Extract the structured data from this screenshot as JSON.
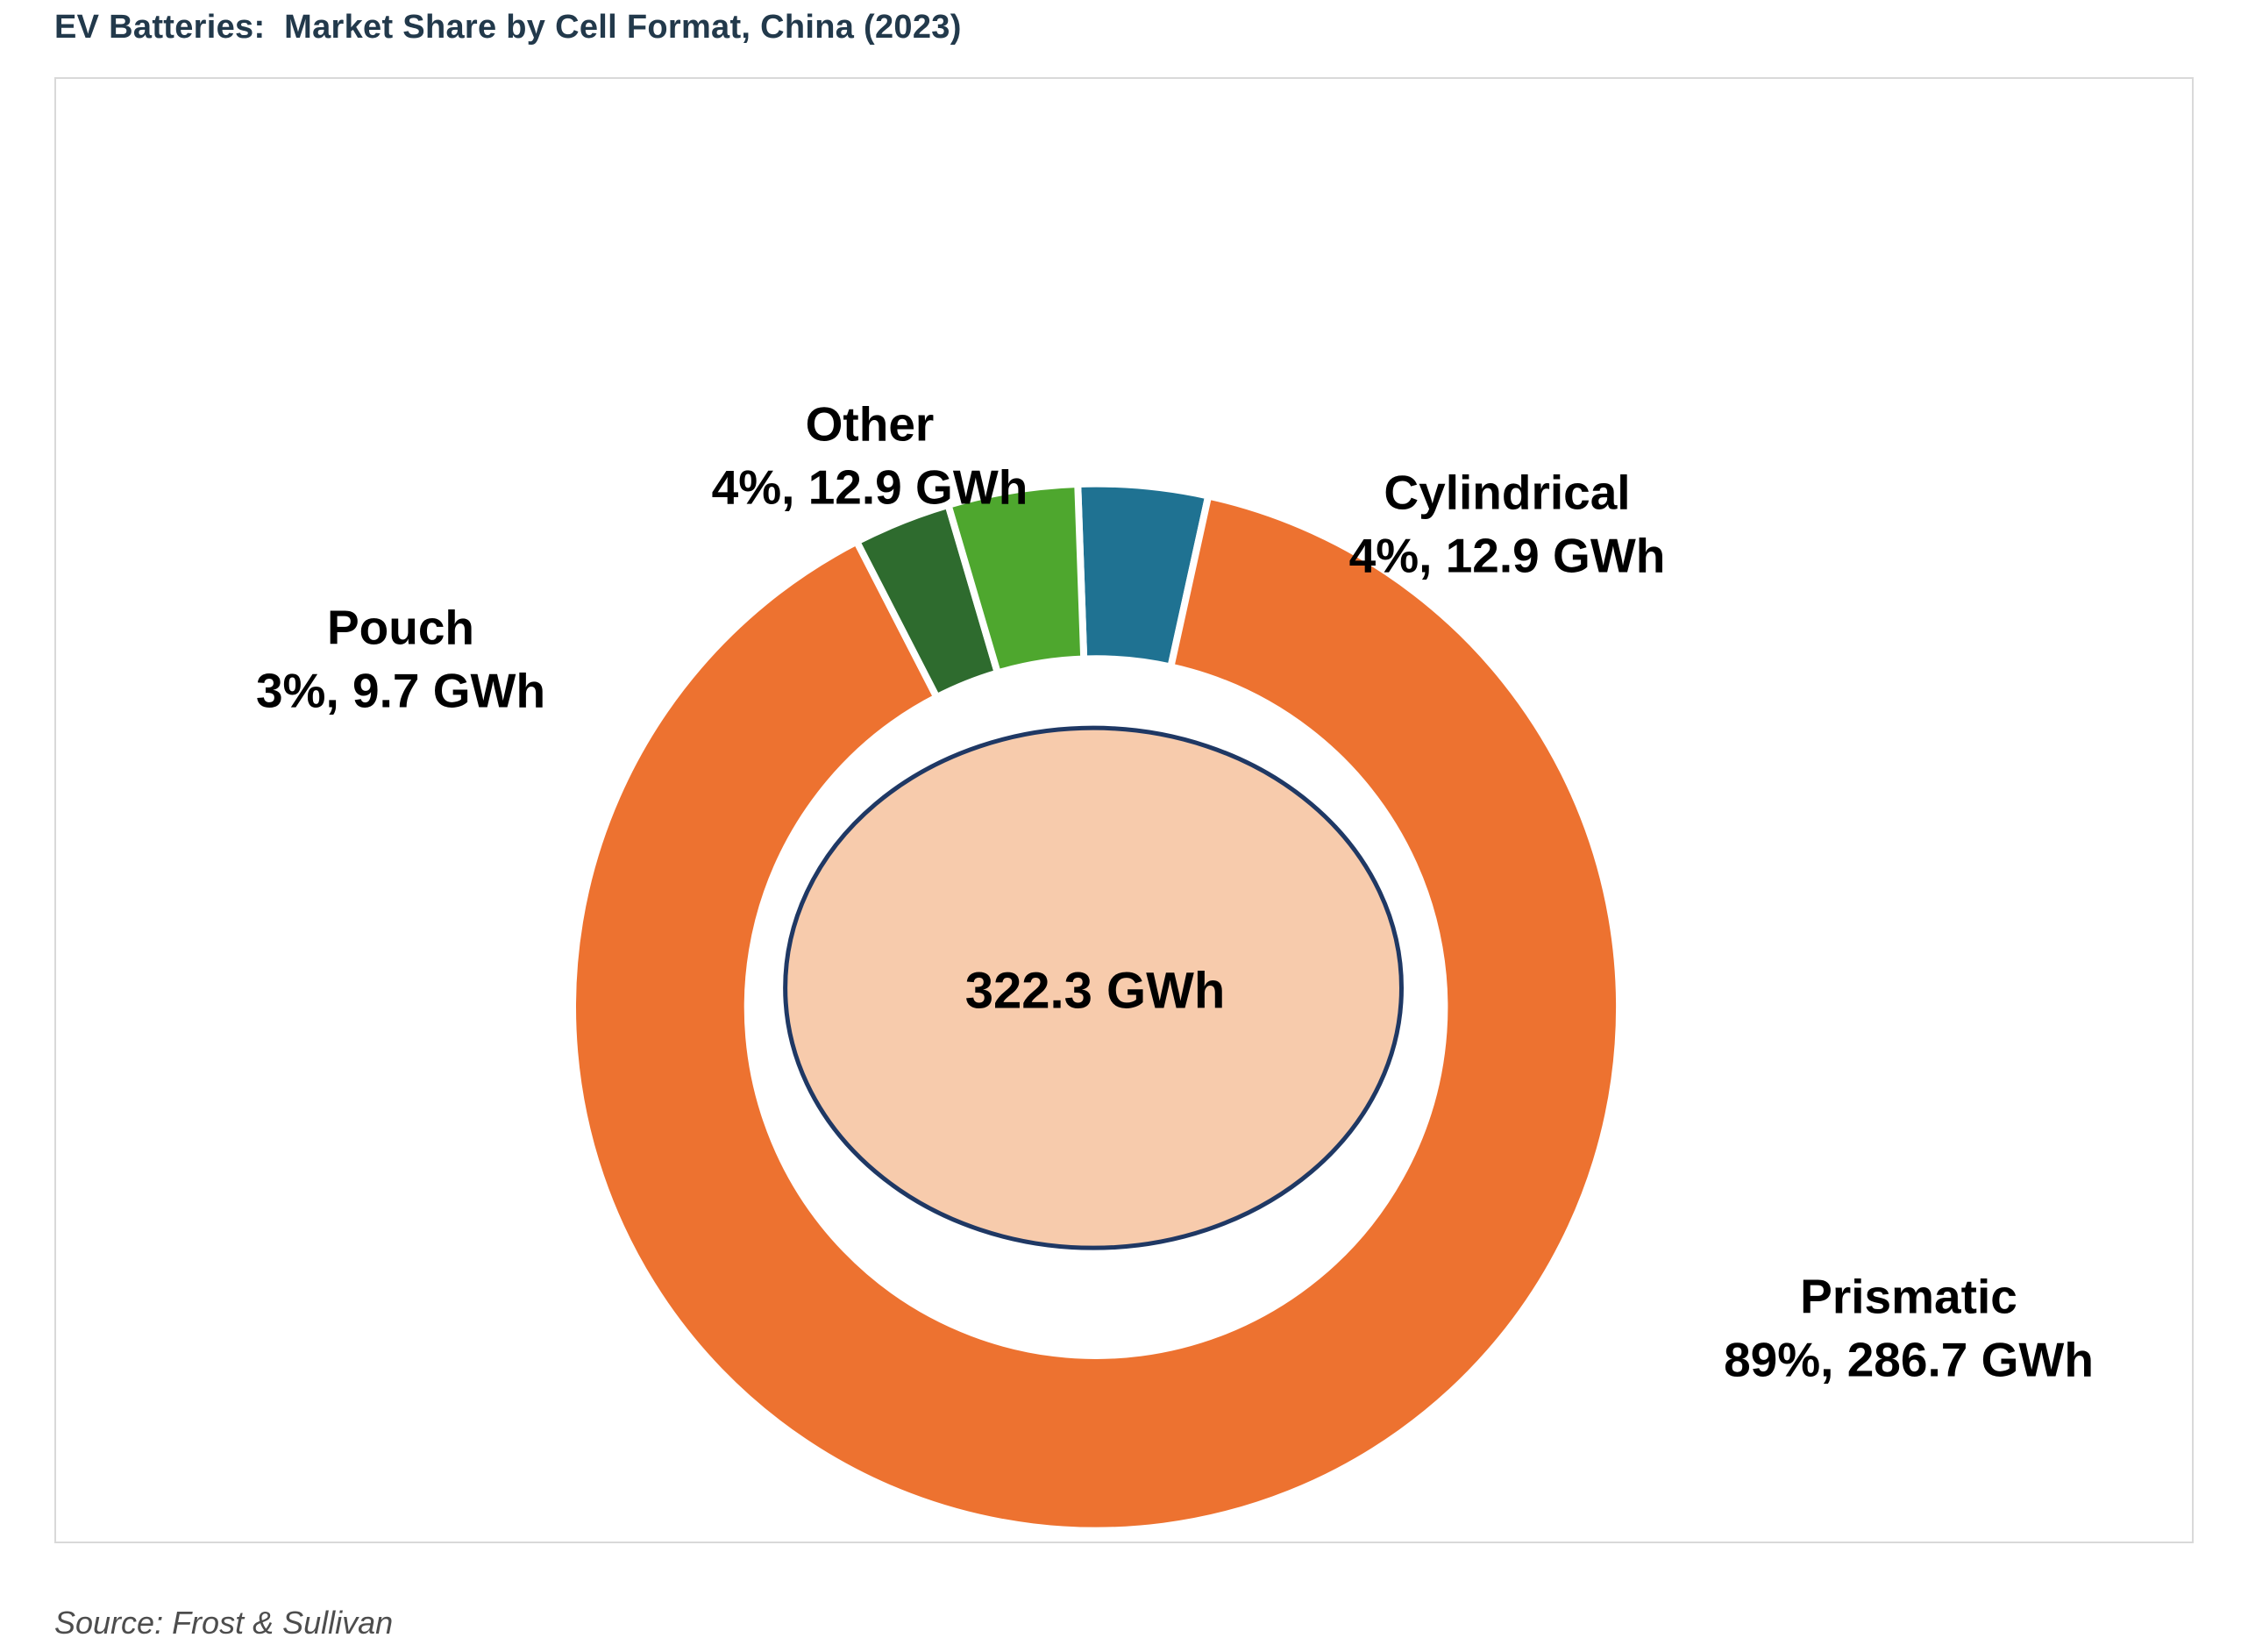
{
  "header": {
    "title": "EV Batteries:  Market Share by Cell Format, China (2023)"
  },
  "footer": {
    "source": "Source: Frost & Sullivan"
  },
  "chart_data": {
    "type": "pie",
    "subtype": "donut",
    "title": "EV Batteries: Market Share by Cell Format, China (2023)",
    "units": "GWh",
    "total_label": "322.3 GWh",
    "total_gwh": 322.3,
    "legend_position": "none",
    "start_angle_deg": -2,
    "separator_color": "#ffffff",
    "segments": [
      {
        "name": "Cylindrical",
        "pct": 4,
        "value_gwh": 12.9,
        "color": "#1f7292",
        "label_line1": "Cylindrical",
        "label_line2": "4%, 12.9 GWh"
      },
      {
        "name": "Prismatic",
        "pct": 89,
        "value_gwh": 286.7,
        "color": "#ed7230",
        "label_line1": "Prismatic",
        "label_line2": "89%, 286.7 GWh"
      },
      {
        "name": "Pouch",
        "pct": 3,
        "value_gwh": 9.7,
        "color": "#2e6b2e",
        "label_line1": "Pouch",
        "label_line2": "3%, 9.7 GWh"
      },
      {
        "name": "Other",
        "pct": 4,
        "value_gwh": 12.9,
        "color": "#4ea72e",
        "label_line1": "Other",
        "label_line2": "4%, 12.9 GWh"
      }
    ],
    "inner_circle": {
      "fill": "#f7cbac",
      "stroke": "#1f3864"
    }
  }
}
